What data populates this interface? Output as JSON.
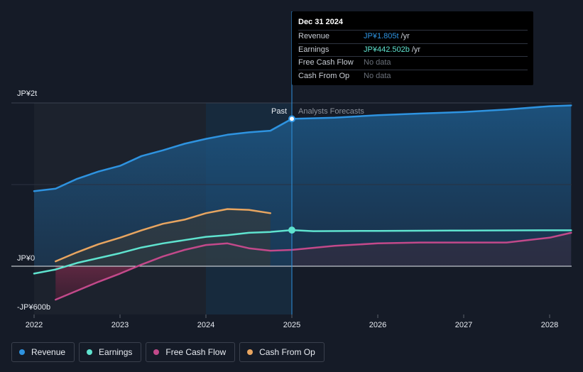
{
  "chart_data": {
    "type": "line",
    "title": "",
    "y_unit_labels": {
      "top": "JP¥2t",
      "zero": "JP¥0",
      "bottom": "-JP¥600b"
    },
    "ylim": [
      -0.6,
      2.0
    ],
    "xlim": [
      2022,
      2028.25
    ],
    "x_ticks": [
      "2022",
      "2023",
      "2024",
      "2025",
      "2026",
      "2027",
      "2028"
    ],
    "x_tick_values": [
      2022,
      2023,
      2024,
      2025,
      2026,
      2027,
      2028
    ],
    "divider": {
      "x": 2025.0,
      "past_label": "Past",
      "forecast_label": "Analysts Forecasts"
    },
    "series": [
      {
        "name": "Revenue",
        "color": "#2e93e0",
        "fill": true,
        "points": [
          [
            2022.0,
            0.92
          ],
          [
            2022.25,
            0.95
          ],
          [
            2022.5,
            1.07
          ],
          [
            2022.75,
            1.16
          ],
          [
            2023.0,
            1.23
          ],
          [
            2023.25,
            1.35
          ],
          [
            2023.5,
            1.42
          ],
          [
            2023.75,
            1.5
          ],
          [
            2024.0,
            1.56
          ],
          [
            2024.25,
            1.61
          ],
          [
            2024.5,
            1.64
          ],
          [
            2024.75,
            1.66
          ],
          [
            2025.0,
            1.805
          ],
          [
            2025.5,
            1.82
          ],
          [
            2026.0,
            1.85
          ],
          [
            2026.5,
            1.87
          ],
          [
            2027.0,
            1.89
          ],
          [
            2027.5,
            1.92
          ],
          [
            2028.0,
            1.96
          ],
          [
            2028.25,
            1.97
          ]
        ]
      },
      {
        "name": "Earnings",
        "color": "#5fe3cf",
        "fill": false,
        "points": [
          [
            2022.0,
            -0.09
          ],
          [
            2022.25,
            -0.04
          ],
          [
            2022.5,
            0.04
          ],
          [
            2022.75,
            0.1
          ],
          [
            2023.0,
            0.16
          ],
          [
            2023.25,
            0.23
          ],
          [
            2023.5,
            0.28
          ],
          [
            2023.75,
            0.32
          ],
          [
            2024.0,
            0.36
          ],
          [
            2024.25,
            0.38
          ],
          [
            2024.5,
            0.41
          ],
          [
            2024.75,
            0.42
          ],
          [
            2025.0,
            0.4425
          ],
          [
            2025.25,
            0.43
          ],
          [
            2026.0,
            0.433
          ],
          [
            2027.0,
            0.437
          ],
          [
            2028.0,
            0.44
          ],
          [
            2028.25,
            0.44
          ]
        ]
      },
      {
        "name": "Free Cash Flow",
        "color": "#c2498a",
        "fill": false,
        "points": [
          [
            2022.25,
            -0.41
          ],
          [
            2022.5,
            -0.3
          ],
          [
            2022.75,
            -0.19
          ],
          [
            2023.0,
            -0.09
          ],
          [
            2023.25,
            0.02
          ],
          [
            2023.5,
            0.12
          ],
          [
            2023.75,
            0.2
          ],
          [
            2024.0,
            0.26
          ],
          [
            2024.25,
            0.28
          ],
          [
            2024.5,
            0.22
          ],
          [
            2024.75,
            0.19
          ],
          [
            2025.0,
            0.2
          ],
          [
            2025.5,
            0.25
          ],
          [
            2026.0,
            0.28
          ],
          [
            2026.5,
            0.29
          ],
          [
            2027.0,
            0.29
          ],
          [
            2027.5,
            0.29
          ],
          [
            2028.0,
            0.35
          ],
          [
            2028.25,
            0.41
          ]
        ]
      },
      {
        "name": "Cash From Op",
        "color": "#e8a560",
        "fill": false,
        "points": [
          [
            2022.25,
            0.06
          ],
          [
            2022.5,
            0.17
          ],
          [
            2022.75,
            0.27
          ],
          [
            2023.0,
            0.35
          ],
          [
            2023.25,
            0.44
          ],
          [
            2023.5,
            0.52
          ],
          [
            2023.75,
            0.57
          ],
          [
            2024.0,
            0.65
          ],
          [
            2024.25,
            0.7
          ],
          [
            2024.5,
            0.69
          ],
          [
            2024.75,
            0.65
          ]
        ]
      }
    ]
  },
  "tooltip": {
    "date": "Dec 31 2024",
    "rows": [
      {
        "name": "Revenue",
        "value": "JP¥1.805t",
        "unit": "/yr",
        "color": "#2e93e0"
      },
      {
        "name": "Earnings",
        "value": "JP¥442.502b",
        "unit": "/yr",
        "color": "#5fe3cf"
      },
      {
        "name": "Free Cash Flow",
        "value": "No data",
        "unit": "",
        "color": "#6b717b"
      },
      {
        "name": "Cash From Op",
        "value": "No data",
        "unit": "",
        "color": "#6b717b"
      }
    ]
  },
  "legend": [
    {
      "label": "Revenue",
      "color": "#2e93e0"
    },
    {
      "label": "Earnings",
      "color": "#5fe3cf"
    },
    {
      "label": "Free Cash Flow",
      "color": "#c2498a"
    },
    {
      "label": "Cash From Op",
      "color": "#e8a560"
    }
  ]
}
